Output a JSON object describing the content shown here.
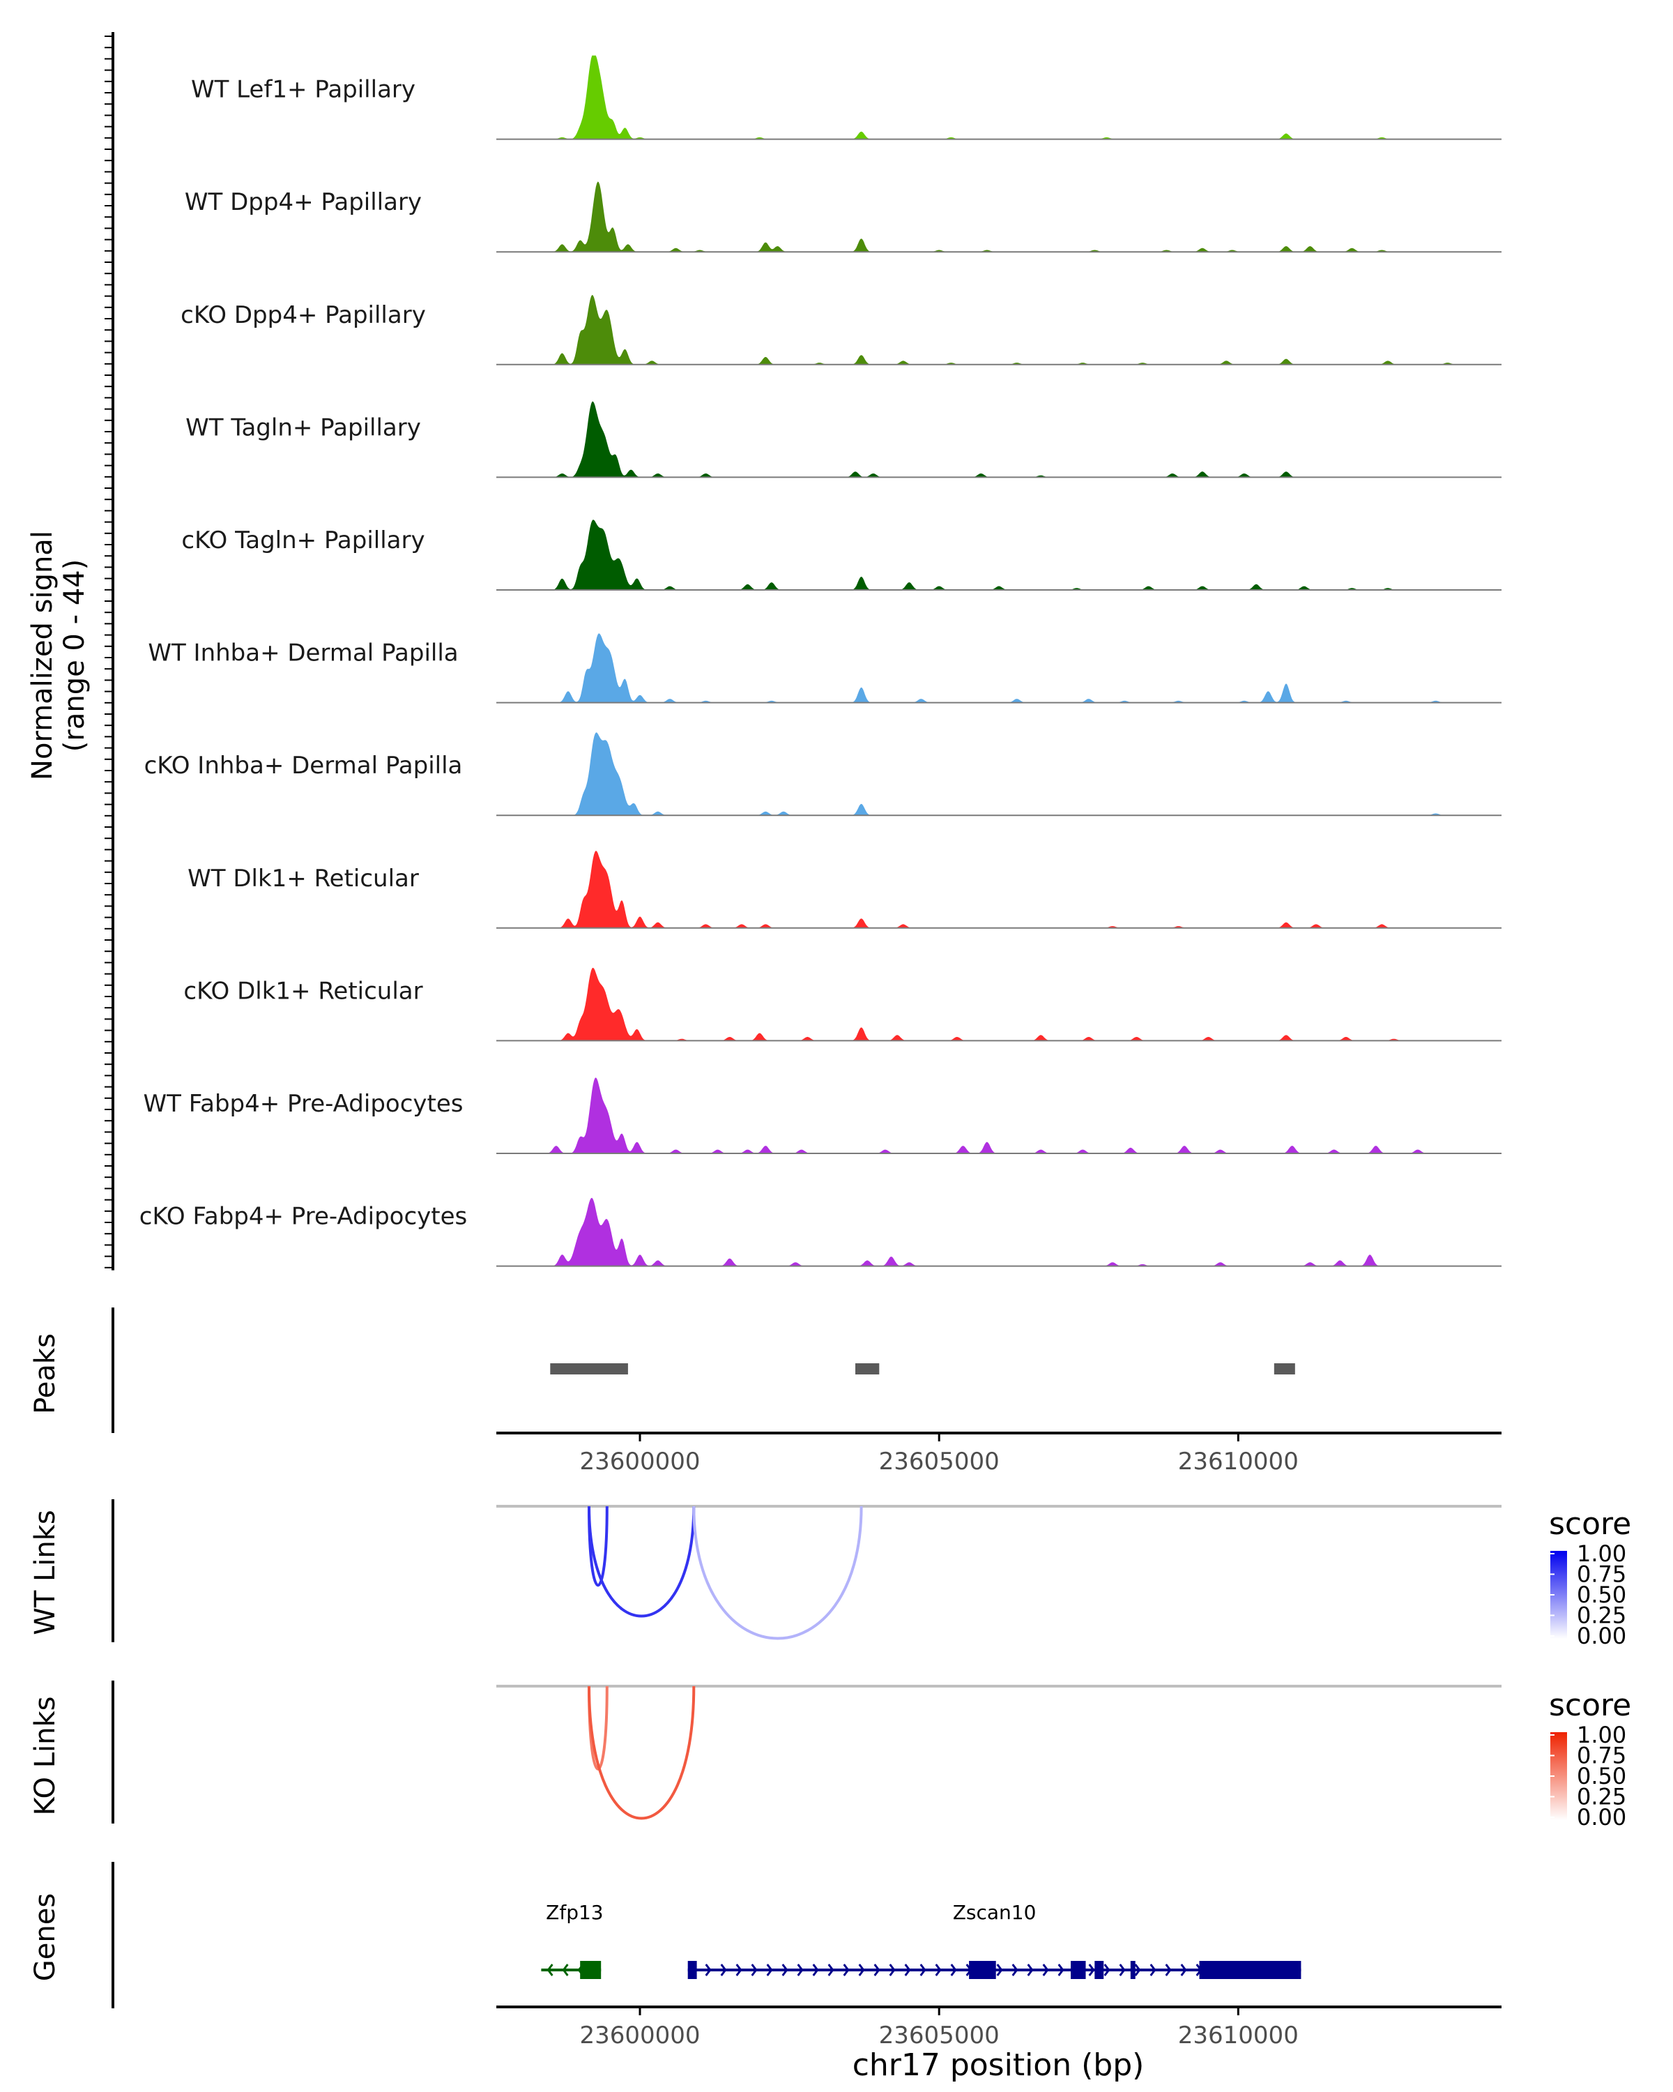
{
  "chart_data": {
    "type": "area",
    "title": "",
    "ylabel_line1": "Normalized signal",
    "ylabel_line2": "(range 0 - 44)",
    "ylim": [
      0,
      44
    ],
    "xlim": [
      23597600,
      23614400
    ],
    "xlabel": "chr17 position (bp)",
    "x_ticks": [
      23600000,
      23605000,
      23610000
    ],
    "x_tick_labels": [
      "23600000",
      "23605000",
      "23610000"
    ],
    "tracks": [
      {
        "name": "WT Lef1+ Papillary",
        "color": "#66cc00",
        "range": [
          23598400,
          23613400
        ],
        "peaks": [
          [
            23598700,
            1
          ],
          [
            23599000,
            4
          ],
          [
            23599200,
            39
          ],
          [
            23599350,
            22
          ],
          [
            23599550,
            8
          ],
          [
            23599750,
            6
          ],
          [
            23600000,
            1
          ],
          [
            23602000,
            1
          ],
          [
            23603700,
            4
          ],
          [
            23605200,
            1
          ],
          [
            23607800,
            1
          ],
          [
            23610800,
            3
          ],
          [
            23612400,
            1
          ]
        ]
      },
      {
        "name": "WT Dpp4+ Papillary",
        "color": "#4d8c0a",
        "range": [
          23598400,
          23614000
        ],
        "peaks": [
          [
            23598700,
            4
          ],
          [
            23599000,
            6
          ],
          [
            23599300,
            37
          ],
          [
            23599550,
            12
          ],
          [
            23599800,
            4
          ],
          [
            23600600,
            2
          ],
          [
            23601000,
            1
          ],
          [
            23602100,
            5
          ],
          [
            23602300,
            3
          ],
          [
            23603700,
            7
          ],
          [
            23605000,
            1
          ],
          [
            23605800,
            1
          ],
          [
            23607600,
            1
          ],
          [
            23608800,
            1
          ],
          [
            23609400,
            2
          ],
          [
            23609900,
            1
          ],
          [
            23610800,
            3
          ],
          [
            23611200,
            3
          ],
          [
            23611900,
            2
          ],
          [
            23612400,
            1
          ]
        ]
      },
      {
        "name": "cKO Dpp4+ Papillary",
        "color": "#4d8c0a",
        "range": [
          23598400,
          23614000
        ],
        "peaks": [
          [
            23598700,
            6
          ],
          [
            23599000,
            14
          ],
          [
            23599200,
            36
          ],
          [
            23599450,
            28
          ],
          [
            23599750,
            8
          ],
          [
            23600200,
            2
          ],
          [
            23602100,
            4
          ],
          [
            23603000,
            1
          ],
          [
            23603700,
            5
          ],
          [
            23604400,
            2
          ],
          [
            23605200,
            1
          ],
          [
            23606300,
            1
          ],
          [
            23607400,
            1
          ],
          [
            23608400,
            1
          ],
          [
            23609800,
            2
          ],
          [
            23610800,
            3
          ],
          [
            23612500,
            2
          ],
          [
            23613500,
            1
          ]
        ]
      },
      {
        "name": "WT Tagln+ Papillary",
        "color": "#005c00",
        "range": [
          23598400,
          23614000
        ],
        "peaks": [
          [
            23598700,
            2
          ],
          [
            23599000,
            4
          ],
          [
            23599200,
            38
          ],
          [
            23599400,
            20
          ],
          [
            23599600,
            10
          ],
          [
            23599850,
            4
          ],
          [
            23600300,
            2
          ],
          [
            23601100,
            2
          ],
          [
            23603600,
            3
          ],
          [
            23603900,
            2
          ],
          [
            23605700,
            2
          ],
          [
            23606700,
            1
          ],
          [
            23608900,
            2
          ],
          [
            23609400,
            3
          ],
          [
            23610100,
            2
          ],
          [
            23610800,
            3
          ]
        ]
      },
      {
        "name": "cKO Tagln+ Papillary",
        "color": "#005c00",
        "range": [
          23598400,
          23614000
        ],
        "peaks": [
          [
            23598700,
            6
          ],
          [
            23599000,
            10
          ],
          [
            23599200,
            34
          ],
          [
            23599400,
            28
          ],
          [
            23599650,
            16
          ],
          [
            23599950,
            6
          ],
          [
            23600500,
            2
          ],
          [
            23601800,
            3
          ],
          [
            23602200,
            4
          ],
          [
            23603700,
            7
          ],
          [
            23604500,
            4
          ],
          [
            23605000,
            2
          ],
          [
            23606000,
            2
          ],
          [
            23607300,
            1
          ],
          [
            23608500,
            2
          ],
          [
            23609400,
            2
          ],
          [
            23610300,
            3
          ],
          [
            23611100,
            2
          ],
          [
            23611900,
            1
          ],
          [
            23612500,
            1
          ]
        ]
      },
      {
        "name": "WT Inhba+ Dermal Papilla",
        "color": "#5aa8e6",
        "range": [
          23598400,
          23614000
        ],
        "peaks": [
          [
            23598800,
            6
          ],
          [
            23599100,
            14
          ],
          [
            23599300,
            34
          ],
          [
            23599500,
            24
          ],
          [
            23599750,
            12
          ],
          [
            23600000,
            4
          ],
          [
            23600500,
            2
          ],
          [
            23601100,
            1
          ],
          [
            23602200,
            1
          ],
          [
            23603700,
            8
          ],
          [
            23604700,
            2
          ],
          [
            23606300,
            2
          ],
          [
            23607500,
            2
          ],
          [
            23608100,
            1
          ],
          [
            23609000,
            1
          ],
          [
            23610100,
            1
          ],
          [
            23610500,
            6
          ],
          [
            23610800,
            10
          ],
          [
            23611800,
            1
          ],
          [
            23613300,
            1
          ]
        ]
      },
      {
        "name": "cKO Inhba+ Dermal Papilla",
        "color": "#5aa8e6",
        "range": [
          23598900,
          23614000
        ],
        "peaks": [
          [
            23599050,
            8
          ],
          [
            23599250,
            40
          ],
          [
            23599450,
            34
          ],
          [
            23599650,
            18
          ],
          [
            23599900,
            6
          ],
          [
            23600300,
            2
          ],
          [
            23602100,
            2
          ],
          [
            23602400,
            2
          ],
          [
            23603700,
            6
          ],
          [
            23613300,
            1
          ]
        ]
      },
      {
        "name": "WT Dlk1+ Reticular",
        "color": "#ff2a2a",
        "range": [
          23598400,
          23614000
        ],
        "peaks": [
          [
            23598800,
            5
          ],
          [
            23599050,
            12
          ],
          [
            23599250,
            38
          ],
          [
            23599450,
            26
          ],
          [
            23599700,
            14
          ],
          [
            23600000,
            6
          ],
          [
            23600300,
            3
          ],
          [
            23601100,
            2
          ],
          [
            23601700,
            2
          ],
          [
            23602100,
            2
          ],
          [
            23603700,
            5
          ],
          [
            23604400,
            2
          ],
          [
            23607900,
            1
          ],
          [
            23609000,
            1
          ],
          [
            23610800,
            3
          ],
          [
            23611300,
            2
          ],
          [
            23612400,
            2
          ]
        ]
      },
      {
        "name": "cKO Dlk1+ Reticular",
        "color": "#ff2a2a",
        "range": [
          23598400,
          23614000
        ],
        "peaks": [
          [
            23598800,
            4
          ],
          [
            23599000,
            8
          ],
          [
            23599200,
            36
          ],
          [
            23599400,
            24
          ],
          [
            23599650,
            16
          ],
          [
            23599950,
            6
          ],
          [
            23600700,
            1
          ],
          [
            23601500,
            2
          ],
          [
            23602000,
            4
          ],
          [
            23602800,
            2
          ],
          [
            23603700,
            7
          ],
          [
            23604300,
            3
          ],
          [
            23605300,
            2
          ],
          [
            23606700,
            3
          ],
          [
            23607500,
            2
          ],
          [
            23608300,
            2
          ],
          [
            23609500,
            2
          ],
          [
            23610800,
            3
          ],
          [
            23611800,
            2
          ],
          [
            23612600,
            1
          ]
        ]
      },
      {
        "name": "WT Fabp4+ Pre-Adipocytes",
        "color": "#b030e0",
        "range": [
          23598400,
          23614000
        ],
        "peaks": [
          [
            23598600,
            4
          ],
          [
            23599000,
            8
          ],
          [
            23599250,
            38
          ],
          [
            23599450,
            20
          ],
          [
            23599700,
            10
          ],
          [
            23599950,
            6
          ],
          [
            23600600,
            2
          ],
          [
            23601300,
            2
          ],
          [
            23601800,
            2
          ],
          [
            23602100,
            4
          ],
          [
            23602700,
            2
          ],
          [
            23604100,
            2
          ],
          [
            23605400,
            4
          ],
          [
            23605800,
            6
          ],
          [
            23606700,
            2
          ],
          [
            23607400,
            2
          ],
          [
            23608200,
            3
          ],
          [
            23609100,
            4
          ],
          [
            23609700,
            2
          ],
          [
            23610900,
            4
          ],
          [
            23611600,
            2
          ],
          [
            23612300,
            4
          ],
          [
            23613000,
            2
          ]
        ]
      },
      {
        "name": "cKO Fabp4+ Pre-Adipocytes",
        "color": "#b030e0",
        "range": [
          23598400,
          23614000
        ],
        "peaks": [
          [
            23598700,
            6
          ],
          [
            23599000,
            16
          ],
          [
            23599200,
            34
          ],
          [
            23599450,
            24
          ],
          [
            23599700,
            14
          ],
          [
            23600000,
            6
          ],
          [
            23600300,
            3
          ],
          [
            23601500,
            4
          ],
          [
            23602600,
            2
          ],
          [
            23603800,
            3
          ],
          [
            23604200,
            5
          ],
          [
            23604500,
            2
          ],
          [
            23607900,
            2
          ],
          [
            23608400,
            1
          ],
          [
            23609700,
            2
          ],
          [
            23611200,
            2
          ],
          [
            23611700,
            3
          ],
          [
            23612200,
            6
          ]
        ]
      }
    ],
    "peaks": {
      "label": "Peaks",
      "color": "#5a5a5a",
      "regions": [
        [
          23598500,
          23599800
        ],
        [
          23603600,
          23604000
        ],
        [
          23610600,
          23610950
        ]
      ]
    },
    "links": [
      {
        "label": "WT Links",
        "legend_title": "score",
        "scale": [
          "#ffffff",
          "#0000ee"
        ],
        "ticks": [
          "1.00",
          "0.75",
          "0.50",
          "0.25",
          "0.00"
        ],
        "arcs": [
          {
            "start": 23599150,
            "end": 23599450,
            "score": 0.8
          },
          {
            "start": 23599150,
            "end": 23600900,
            "score": 0.8
          },
          {
            "start": 23600900,
            "end": 23603700,
            "score": 0.3
          }
        ]
      },
      {
        "label": "KO Links",
        "legend_title": "score",
        "scale": [
          "#ffffff",
          "#ee2200"
        ],
        "ticks": [
          "1.00",
          "0.75",
          "0.50",
          "0.25",
          "0.00"
        ],
        "arcs": [
          {
            "start": 23599150,
            "end": 23599450,
            "score": 0.6
          },
          {
            "start": 23599150,
            "end": 23600900,
            "score": 0.75
          }
        ]
      }
    ],
    "genes": {
      "label": "Genes",
      "items": [
        {
          "name": "Zfp13",
          "color": "#006400",
          "strand": "-",
          "start": 23598350,
          "end": 23599350,
          "exons": [
            [
              23599000,
              23599350
            ]
          ]
        },
        {
          "name": "Zscan10",
          "color": "#00008b",
          "strand": "+",
          "start": 23600800,
          "end": 23611050,
          "exons": [
            [
              23600800,
              23600950
            ],
            [
              23605500,
              23605950
            ],
            [
              23607200,
              23607450
            ],
            [
              23607600,
              23607750
            ],
            [
              23608200,
              23608280
            ],
            [
              23609350,
              23611050
            ]
          ]
        }
      ]
    }
  }
}
